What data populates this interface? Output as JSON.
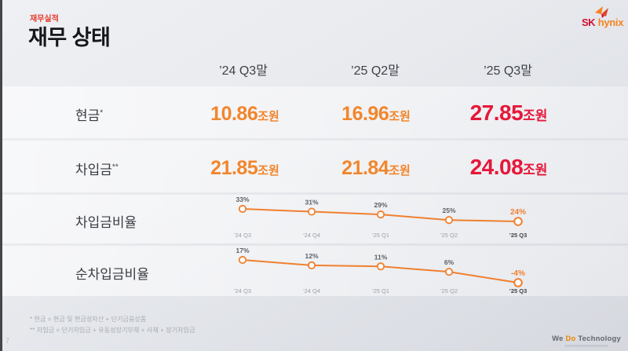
{
  "slide": {
    "eyebrow": "재무실적",
    "title": "재무 상태",
    "page_number": "7",
    "footnotes": [
      "* 현금 = 현금 및 현금성자산 + 단기금융상품",
      "** 차입금 = 단기차입금 + 유동성장기부채 + 사채 + 장기차입금"
    ]
  },
  "logo": {
    "sk": "SK",
    "hynix": "hynix"
  },
  "footer_logo": {
    "we": "We ",
    "do": "Do",
    "technology": " Technology"
  },
  "columns": [
    "’24 Q3말",
    "’25 Q2말",
    "’25 Q3말"
  ],
  "table": {
    "rows": [
      {
        "label": "현금",
        "footnote_mark": "*",
        "values": [
          {
            "num": "10.86",
            "unit": "조원"
          },
          {
            "num": "16.96",
            "unit": "조원"
          },
          {
            "num": "27.85",
            "unit": "조원"
          }
        ]
      },
      {
        "label": "차입금",
        "footnote_mark": "**",
        "values": [
          {
            "num": "21.85",
            "unit": "조원"
          },
          {
            "num": "21.84",
            "unit": "조원"
          },
          {
            "num": "24.08",
            "unit": "조원"
          }
        ]
      }
    ]
  },
  "chart_data": [
    {
      "type": "line",
      "title": "차입금비율",
      "categories": [
        "’24 Q3",
        "’24 Q4",
        "’25 Q1",
        "’25 Q2",
        "’25 Q3"
      ],
      "values": [
        33,
        31,
        29,
        25,
        24
      ],
      "unit": "%",
      "line_color": "#F0802F",
      "highlight_last": true,
      "legend": "none",
      "grid": false
    },
    {
      "type": "line",
      "title": "순차입금비율",
      "categories": [
        "’24 Q3",
        "’24 Q4",
        "’25 Q1",
        "’25 Q2",
        "’25 Q3"
      ],
      "values": [
        17,
        12,
        11,
        6,
        -4
      ],
      "unit": "%",
      "line_color": "#F0802F",
      "highlight_last": true,
      "legend": "none",
      "grid": false
    }
  ],
  "colors": {
    "accent_orange": "#F2862C",
    "emphasis_red": "#E6173A",
    "chart_line_orange": "#F0802F",
    "eyebrow_red": "#E5392C",
    "sk_red": "#CE1134",
    "hynix_orange": "#F5831F"
  }
}
